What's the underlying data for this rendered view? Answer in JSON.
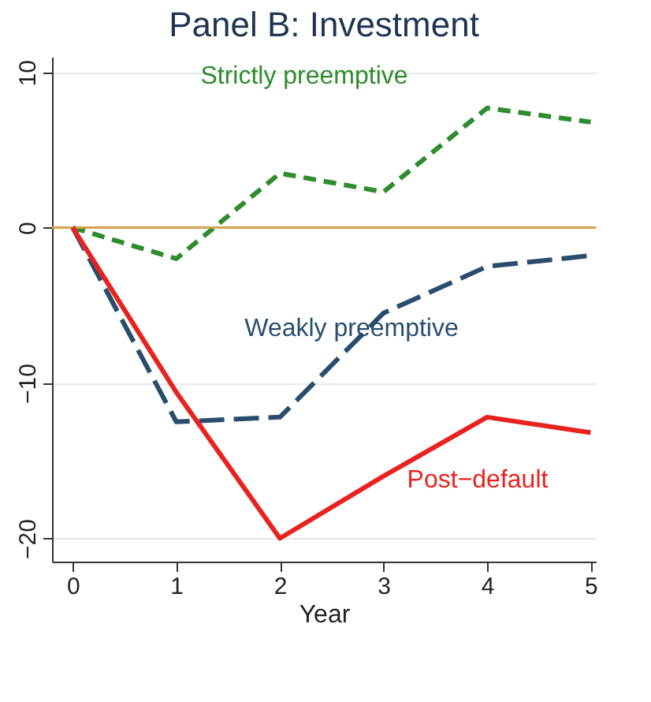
{
  "chart_data": {
    "type": "line",
    "title": "Panel B: Investment",
    "xlabel": "Year",
    "x": [
      0,
      1,
      2,
      3,
      4,
      5
    ],
    "xlim": [
      -0.2,
      5.05
    ],
    "xticks": [
      0,
      1,
      2,
      3,
      4,
      5
    ],
    "ylim": [
      -21.5,
      11
    ],
    "yticks": [
      -20,
      -10,
      0,
      10
    ],
    "grid": "y",
    "marker": "none",
    "ref_lines": [
      {
        "axis": "y",
        "value": 0,
        "color": "#d4a24c"
      }
    ],
    "series": [
      {
        "name": "Strictly preemptive",
        "color": "#2e8b2e",
        "line_style": "dashed",
        "values": [
          0,
          -2.0,
          3.5,
          2.3,
          7.7,
          6.8
        ]
      },
      {
        "name": "Weakly preemptive",
        "color": "#2a4d6e",
        "line_style": "longdash",
        "values": [
          0,
          -12.5,
          -12.2,
          -5.5,
          -2.5,
          -1.8
        ]
      },
      {
        "name": "Post−default",
        "color": "#e8231f",
        "line_style": "solid",
        "values": [
          0,
          -10.6,
          -20,
          -16,
          -12.2,
          -13.2
        ]
      }
    ]
  }
}
